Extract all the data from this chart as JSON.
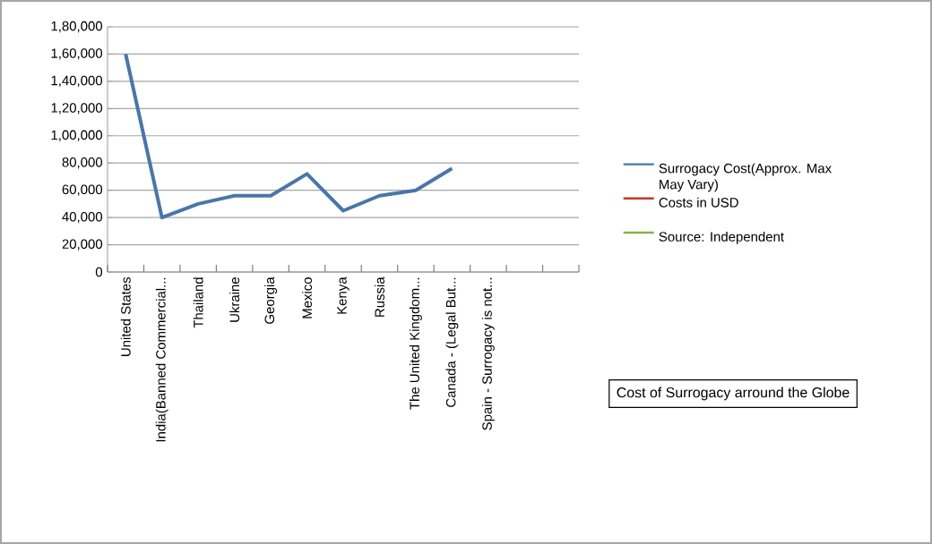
{
  "chart_data": {
    "type": "line",
    "title": "Cost of Surrogacy arround the Globe",
    "categories": [
      "United States",
      "India(Banned Commercial...",
      "Thailand",
      "Ukraine",
      "Georgia",
      "Mexico",
      "Kenya",
      "Russia",
      "The United Kingdom...",
      "Canada - (Legal But...",
      "Spain - Surrogacy is not...",
      null,
      null
    ],
    "series": [
      {
        "name": "Surrogacy Cost(Approx. Max May Vary)",
        "color": "#4a76a8",
        "values": [
          160000,
          40000,
          50000,
          56000,
          56000,
          72000,
          45000,
          56000,
          60000,
          76000,
          null,
          null,
          null
        ]
      },
      {
        "name": "Costs in USD",
        "color": "#c0392b",
        "values": [
          null,
          null,
          null,
          null,
          null,
          null,
          null,
          null,
          null,
          null,
          null,
          null,
          null
        ]
      },
      {
        "name": "Source: Independent",
        "color": "#8db04a",
        "values": [
          null,
          null,
          null,
          null,
          null,
          null,
          null,
          null,
          null,
          null,
          null,
          null,
          null
        ]
      }
    ],
    "ylim": [
      0,
      180000
    ],
    "yticks": [
      0,
      {
        "value": 20000,
        "label": "20,000"
      },
      {
        "value": 40000,
        "label": "40,000"
      },
      {
        "value": 60000,
        "label": "60,000"
      },
      {
        "value": 80000,
        "label": "80,000"
      },
      {
        "value": 100000,
        "label": "1,00,000"
      },
      {
        "value": 120000,
        "label": "1,20,000"
      },
      {
        "value": 140000,
        "label": "1,40,000"
      },
      {
        "value": 160000,
        "label": "1,60,000"
      },
      {
        "value": 180000,
        "label": "1,80,000"
      }
    ],
    "grid": "y",
    "legend": "right"
  }
}
